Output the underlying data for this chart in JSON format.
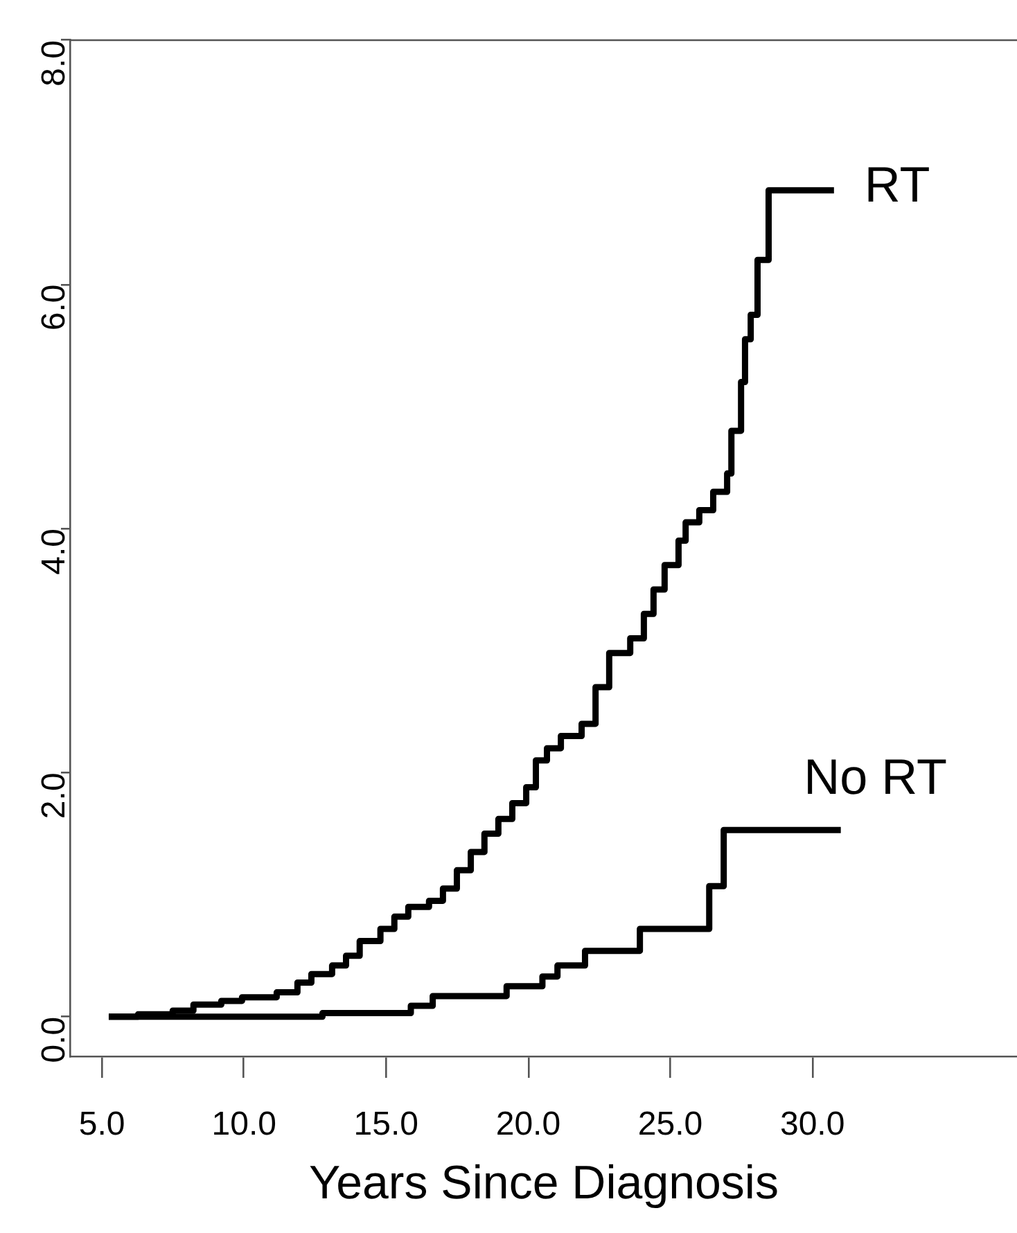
{
  "chart_data": {
    "type": "step",
    "xlabel": "Years Since Diagnosis",
    "xlim": [
      3.9,
      37.2
    ],
    "ylim": [
      -0.33,
      8.0
    ],
    "xticks": [
      {
        "value": 5,
        "label": "5.0"
      },
      {
        "value": 10,
        "label": "10.0"
      },
      {
        "value": 15,
        "label": "15.0"
      },
      {
        "value": 20,
        "label": "20.0"
      },
      {
        "value": 25,
        "label": "25.0"
      },
      {
        "value": 30,
        "label": "30.0"
      }
    ],
    "yticks": [
      {
        "value": 0,
        "label": "0.0"
      },
      {
        "value": 2,
        "label": "2.0"
      },
      {
        "value": 4,
        "label": "4.0"
      },
      {
        "value": 6,
        "label": "6.0"
      },
      {
        "value": 8,
        "label": "8.0"
      }
    ],
    "grid": false,
    "legend": false,
    "marker": "none",
    "line_style": "solid",
    "series": [
      {
        "name": "RT",
        "color": "#000000",
        "x": [
          5.24,
          6.27,
          7.49,
          8.22,
          9.2,
          9.93,
          11.15,
          11.88,
          12.37,
          13.1,
          13.59,
          14.07,
          14.8,
          15.29,
          15.78,
          16.51,
          17.0,
          17.49,
          17.98,
          18.46,
          18.95,
          19.44,
          19.93,
          20.27,
          20.66,
          21.15,
          21.88,
          22.37,
          22.85,
          23.59,
          24.07,
          24.41,
          24.8,
          25.29,
          25.54,
          26.02,
          26.51,
          27.0,
          27.15,
          27.49,
          27.63,
          27.83,
          28.07,
          28.46,
          30.76
        ],
        "values": [
          0.0,
          0.02,
          0.05,
          0.1,
          0.13,
          0.16,
          0.2,
          0.28,
          0.35,
          0.42,
          0.5,
          0.62,
          0.72,
          0.82,
          0.9,
          0.95,
          1.05,
          1.2,
          1.35,
          1.5,
          1.62,
          1.75,
          1.88,
          2.1,
          2.2,
          2.3,
          2.4,
          2.7,
          2.98,
          3.1,
          3.3,
          3.5,
          3.7,
          3.9,
          4.05,
          4.15,
          4.3,
          4.45,
          4.8,
          5.2,
          5.55,
          5.75,
          6.2,
          6.77,
          6.77
        ]
      },
      {
        "name": "No RT",
        "color": "#000000",
        "x": [
          5.24,
          12.76,
          15.87,
          16.64,
          19.24,
          20.5,
          21.03,
          22.0,
          23.93,
          26.37,
          26.88,
          31.0
        ],
        "values": [
          0.0,
          0.03,
          0.09,
          0.17,
          0.25,
          0.33,
          0.42,
          0.54,
          0.72,
          1.07,
          1.53,
          1.53
        ]
      }
    ]
  }
}
